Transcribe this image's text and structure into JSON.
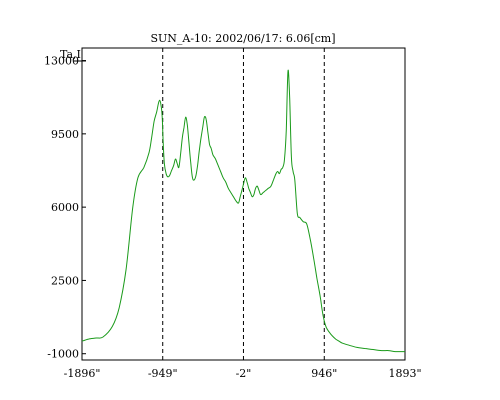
{
  "chart_data": {
    "type": "line",
    "title": "SUN_A-10: 2002/06/17: 6.06[cm]",
    "ylabel": "Ta,I",
    "xlabel": "",
    "xlim": [
      -1896,
      1893
    ],
    "ylim": [
      -1300,
      13600
    ],
    "x_ticks": [
      {
        "value": -1896,
        "label": "-1896\""
      },
      {
        "value": -949,
        "label": "-949\""
      },
      {
        "value": -2,
        "label": "-2\""
      },
      {
        "value": 946,
        "label": "946\""
      },
      {
        "value": 1893,
        "label": "1893\""
      }
    ],
    "y_ticks": [
      {
        "value": -1000,
        "label": "-1000"
      },
      {
        "value": 2500,
        "label": "2500"
      },
      {
        "value": 6000,
        "label": "6000"
      },
      {
        "value": 9500,
        "label": "9500"
      },
      {
        "value": 13000,
        "label": "13000"
      }
    ],
    "vlines": [
      -949,
      -2,
      946
    ],
    "grid": false,
    "line_color": "#1a9a1a",
    "series": [
      {
        "x": [
          -1896,
          -1820,
          -1730,
          -1650,
          -1540,
          -1460,
          -1380,
          -1300,
          -1240,
          -1170,
          -1110,
          -1080,
          -1050,
          -1020,
          -1000,
          -985,
          -970,
          -955,
          -945,
          -930,
          -910,
          -890,
          -870,
          -850,
          -820,
          -800,
          -780,
          -760,
          -740,
          -720,
          -700,
          -680,
          -660,
          -640,
          -620,
          -600,
          -580,
          -560,
          -540,
          -520,
          -500,
          -480,
          -460,
          -440,
          -420,
          -400,
          -380,
          -360,
          -330,
          -300,
          -270,
          -240,
          -210,
          -180,
          -150,
          -120,
          -90,
          -60,
          -40,
          -20,
          -2,
          20,
          40,
          60,
          80,
          100,
          120,
          140,
          160,
          180,
          200,
          230,
          260,
          290,
          320,
          350,
          380,
          400,
          420,
          440,
          460,
          480,
          500,
          520,
          540,
          560,
          580,
          600,
          630,
          660,
          700,
          740,
          780,
          820,
          860,
          900,
          920,
          946,
          970,
          1000,
          1040,
          1080,
          1120,
          1160,
          1240,
          1330,
          1420,
          1520,
          1620,
          1700,
          1780,
          1860,
          1893
        ],
        "y": [
          -400,
          -300,
          -250,
          -200,
          300,
          1200,
          3000,
          6000,
          7400,
          7900,
          8600,
          9300,
          10100,
          10550,
          10950,
          11100,
          10900,
          10300,
          9200,
          8100,
          7600,
          7450,
          7500,
          7700,
          8000,
          8300,
          8100,
          7900,
          8500,
          9300,
          9800,
          10300,
          9900,
          9000,
          8100,
          7400,
          7300,
          7500,
          8000,
          8700,
          9300,
          9800,
          10300,
          10200,
          9600,
          9000,
          8800,
          8500,
          8300,
          8000,
          7700,
          7400,
          7200,
          6900,
          6700,
          6500,
          6300,
          6200,
          6500,
          6800,
          7100,
          7400,
          7200,
          6900,
          6700,
          6500,
          6600,
          6900,
          7000,
          6800,
          6600,
          6700,
          6800,
          6900,
          7000,
          7300,
          7600,
          7700,
          7600,
          7800,
          7900,
          8300,
          9700,
          12500,
          11200,
          8400,
          7700,
          7300,
          5700,
          5500,
          5300,
          5200,
          4500,
          3600,
          2600,
          1700,
          1100,
          550,
          250,
          50,
          -150,
          -300,
          -400,
          -500,
          -600,
          -700,
          -750,
          -800,
          -850,
          -850,
          -900,
          -900,
          -900
        ]
      }
    ]
  }
}
